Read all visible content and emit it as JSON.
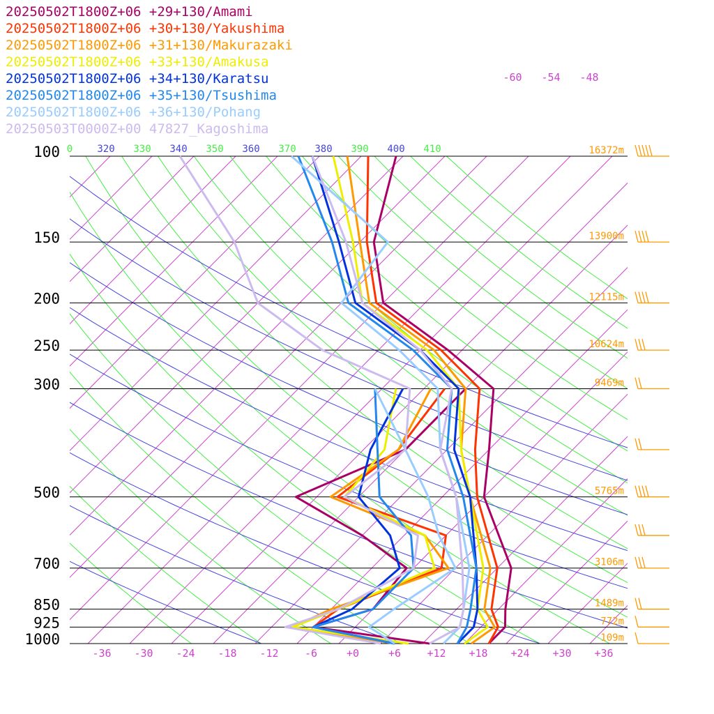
{
  "chart_data": {
    "type": "line",
    "chart_kind": "skew-T log-P sounding",
    "legend": [
      {
        "label": "20250502T1800Z+06 +29+130/Amami",
        "color": "#aa0066"
      },
      {
        "label": "20250502T1800Z+06 +30+130/Yakushima",
        "color": "#ff3300"
      },
      {
        "label": "20250502T1800Z+06 +31+130/Makurazaki",
        "color": "#ff9900"
      },
      {
        "label": "20250502T1800Z+06 +33+130/Amakusa",
        "color": "#eeee00"
      },
      {
        "label": "20250502T1800Z+06 +34+130/Karatsu",
        "color": "#0033dd"
      },
      {
        "label": "20250502T1800Z+06 +35+130/Tsushima",
        "color": "#2288ee"
      },
      {
        "label": "20250502T1800Z+06 +36+130/Pohang",
        "color": "#99ccff"
      },
      {
        "label": "20250503T0000Z+00 47827_Kagoshima",
        "color": "#ccbbee"
      }
    ],
    "pressure_levels": [
      {
        "p": 100,
        "label": "100",
        "height": "16372m"
      },
      {
        "p": 150,
        "label": "150",
        "height": "13900m"
      },
      {
        "p": 200,
        "label": "200",
        "height": "12115m"
      },
      {
        "p": 250,
        "label": "250",
        "height": "10624m"
      },
      {
        "p": 300,
        "label": "300",
        "height": "9469m"
      },
      {
        "p": 500,
        "label": "500",
        "height": "5765m"
      },
      {
        "p": 700,
        "label": "700",
        "height": "3106m"
      },
      {
        "p": 850,
        "label": "850",
        "height": "1489m"
      },
      {
        "p": 925,
        "label": "925",
        "height": "772m"
      },
      {
        "p": 1000,
        "label": "1000",
        "height": "109m"
      }
    ],
    "x_ticks": [
      "-36",
      "-30",
      "-24",
      "-18",
      "-12",
      "-6",
      "+0",
      "+6",
      "+12",
      "+18",
      "+24",
      "+30",
      "+36"
    ],
    "theta_labels": [
      "0",
      "320",
      "330",
      "340",
      "350",
      "360",
      "370",
      "380",
      "390",
      "400",
      "410"
    ],
    "mixing_labels": [
      "-60",
      "-54",
      "-48"
    ],
    "xlim": [
      -40,
      40
    ],
    "ylim": [
      1000,
      100
    ],
    "y_scale": "log",
    "series": [
      {
        "color": "#aa0066",
        "temp": [
          [
            1000,
            19.5
          ],
          [
            925,
            19.5
          ],
          [
            850,
            17
          ],
          [
            700,
            12
          ],
          [
            500,
            -2
          ],
          [
            400,
            -8
          ],
          [
            300,
            -16
          ],
          [
            250,
            -28
          ],
          [
            200,
            -44
          ],
          [
            150,
            -54
          ],
          [
            100,
            -63
          ]
        ],
        "dewp": [
          [
            1000,
            11
          ],
          [
            925,
            -8
          ],
          [
            850,
            -2
          ],
          [
            700,
            -3
          ],
          [
            600,
            -14
          ],
          [
            500,
            -29
          ],
          [
            400,
            -20
          ],
          [
            300,
            -20
          ]
        ]
      },
      {
        "color": "#ff3300",
        "temp": [
          [
            1000,
            19.5
          ],
          [
            925,
            18.5
          ],
          [
            850,
            15
          ],
          [
            700,
            10
          ],
          [
            500,
            -3
          ],
          [
            400,
            -10
          ],
          [
            300,
            -18
          ],
          [
            250,
            -29
          ],
          [
            200,
            -45
          ],
          [
            150,
            -55
          ],
          [
            100,
            -67
          ]
        ],
        "dewp": [
          [
            1000,
            6
          ],
          [
            925,
            -8
          ],
          [
            850,
            -7
          ],
          [
            700,
            2
          ],
          [
            600,
            -2
          ],
          [
            500,
            -23
          ],
          [
            400,
            -21
          ],
          [
            300,
            -23
          ]
        ]
      },
      {
        "color": "#ff9900",
        "temp": [
          [
            1000,
            17
          ],
          [
            925,
            18
          ],
          [
            850,
            14
          ],
          [
            700,
            9
          ],
          [
            500,
            -4
          ],
          [
            400,
            -12
          ],
          [
            300,
            -20
          ],
          [
            250,
            -30
          ],
          [
            200,
            -46
          ],
          [
            150,
            -56
          ],
          [
            100,
            -70
          ]
        ],
        "dewp": [
          [
            1000,
            6
          ],
          [
            925,
            -11
          ],
          [
            850,
            -8
          ],
          [
            700,
            3
          ],
          [
            600,
            -5
          ],
          [
            500,
            -24
          ],
          [
            400,
            -21
          ],
          [
            300,
            -25
          ]
        ]
      },
      {
        "color": "#eeee00",
        "temp": [
          [
            1000,
            16
          ],
          [
            925,
            17
          ],
          [
            850,
            13
          ],
          [
            700,
            8
          ],
          [
            500,
            -4
          ],
          [
            400,
            -12
          ],
          [
            300,
            -21
          ],
          [
            250,
            -31
          ],
          [
            200,
            -47
          ],
          [
            150,
            -57
          ],
          [
            100,
            -72
          ]
        ],
        "dewp": [
          [
            1000,
            8
          ],
          [
            925,
            -11
          ],
          [
            850,
            -7
          ],
          [
            700,
            1
          ],
          [
            600,
            -5
          ],
          [
            500,
            -22
          ],
          [
            400,
            -23
          ],
          [
            300,
            -30
          ]
        ]
      },
      {
        "color": "#0033dd",
        "temp": [
          [
            1000,
            15
          ],
          [
            925,
            15
          ],
          [
            850,
            13
          ],
          [
            700,
            7
          ],
          [
            500,
            -4
          ],
          [
            400,
            -13
          ],
          [
            300,
            -21
          ],
          [
            250,
            -32
          ],
          [
            200,
            -48
          ],
          [
            150,
            -59
          ],
          [
            100,
            -75
          ]
        ],
        "dewp": [
          [
            1000,
            6
          ],
          [
            925,
            -8
          ],
          [
            850,
            -5
          ],
          [
            700,
            -4
          ],
          [
            600,
            -10
          ],
          [
            500,
            -20
          ],
          [
            400,
            -25
          ],
          [
            300,
            -29
          ]
        ]
      },
      {
        "color": "#2288ee",
        "temp": [
          [
            1000,
            15
          ],
          [
            925,
            14
          ],
          [
            850,
            12
          ],
          [
            700,
            7
          ],
          [
            500,
            -5
          ],
          [
            400,
            -14
          ],
          [
            300,
            -22
          ],
          [
            250,
            -33
          ],
          [
            200,
            -49
          ],
          [
            150,
            -60
          ],
          [
            100,
            -77
          ]
        ],
        "dewp": [
          [
            1000,
            6
          ],
          [
            925,
            -8
          ],
          [
            850,
            -2
          ],
          [
            700,
            -2
          ],
          [
            600,
            -7
          ],
          [
            500,
            -17
          ],
          [
            400,
            -24
          ],
          [
            300,
            -33
          ]
        ]
      },
      {
        "color": "#99ccff",
        "temp": [
          [
            1000,
            13
          ],
          [
            925,
            13
          ],
          [
            850,
            11
          ],
          [
            700,
            6
          ],
          [
            500,
            -6
          ],
          [
            400,
            -15
          ],
          [
            300,
            -24
          ],
          [
            250,
            -35
          ],
          [
            200,
            -50
          ],
          [
            150,
            -52
          ],
          [
            100,
            -78
          ]
        ],
        "dewp": [
          [
            1000,
            6
          ],
          [
            925,
            0
          ],
          [
            850,
            1
          ],
          [
            700,
            4
          ],
          [
            600,
            -3
          ],
          [
            500,
            -10
          ],
          [
            400,
            -20
          ],
          [
            300,
            -33
          ]
        ]
      },
      {
        "color": "#ccbbee",
        "temp": [
          [
            1000,
            11
          ],
          [
            925,
            13
          ],
          [
            850,
            11
          ],
          [
            700,
            5
          ],
          [
            500,
            -6
          ],
          [
            400,
            -15
          ],
          [
            300,
            -22
          ],
          [
            250,
            -32
          ],
          [
            200,
            -47
          ],
          [
            150,
            -58
          ],
          [
            100,
            -75
          ]
        ],
        "dewp": [
          [
            1000,
            4
          ],
          [
            925,
            -12
          ],
          [
            850,
            -7
          ],
          [
            700,
            -2
          ],
          [
            600,
            -6
          ],
          [
            500,
            -22
          ],
          [
            400,
            -20
          ],
          [
            300,
            -28
          ],
          [
            250,
            -46
          ],
          [
            200,
            -62
          ],
          [
            150,
            -74
          ],
          [
            100,
            -94
          ]
        ]
      }
    ],
    "wind_barbs": [
      {
        "p": 100,
        "speed_kt": 50,
        "color": "#ff9900"
      },
      {
        "p": 150,
        "speed_kt": 40,
        "color": "#ff9900"
      },
      {
        "p": 200,
        "speed_kt": 40,
        "color": "#ff9900"
      },
      {
        "p": 250,
        "speed_kt": 30,
        "color": "#ff9900"
      },
      {
        "p": 300,
        "speed_kt": 20,
        "color": "#ff9900"
      },
      {
        "p": 400,
        "speed_kt": 20,
        "color": "#ff9900"
      },
      {
        "p": 500,
        "speed_kt": 40,
        "color": "#ff9900"
      },
      {
        "p": 600,
        "speed_kt": 30,
        "color": "#ff9900"
      },
      {
        "p": 700,
        "speed_kt": 30,
        "color": "#ff9900"
      },
      {
        "p": 850,
        "speed_kt": 20,
        "color": "#ff9900"
      },
      {
        "p": 925,
        "speed_kt": 10,
        "color": "#ff9900"
      },
      {
        "p": 1000,
        "speed_kt": 10,
        "color": "#ff9900"
      }
    ],
    "colors": {
      "isobar": "#000000",
      "isotherm": "#cc44cc",
      "dry_adiabat": "#44ee44",
      "moist_adiabat": "#4444dd",
      "height_label": "#ff9900",
      "tick_label": "#cc44cc"
    }
  }
}
